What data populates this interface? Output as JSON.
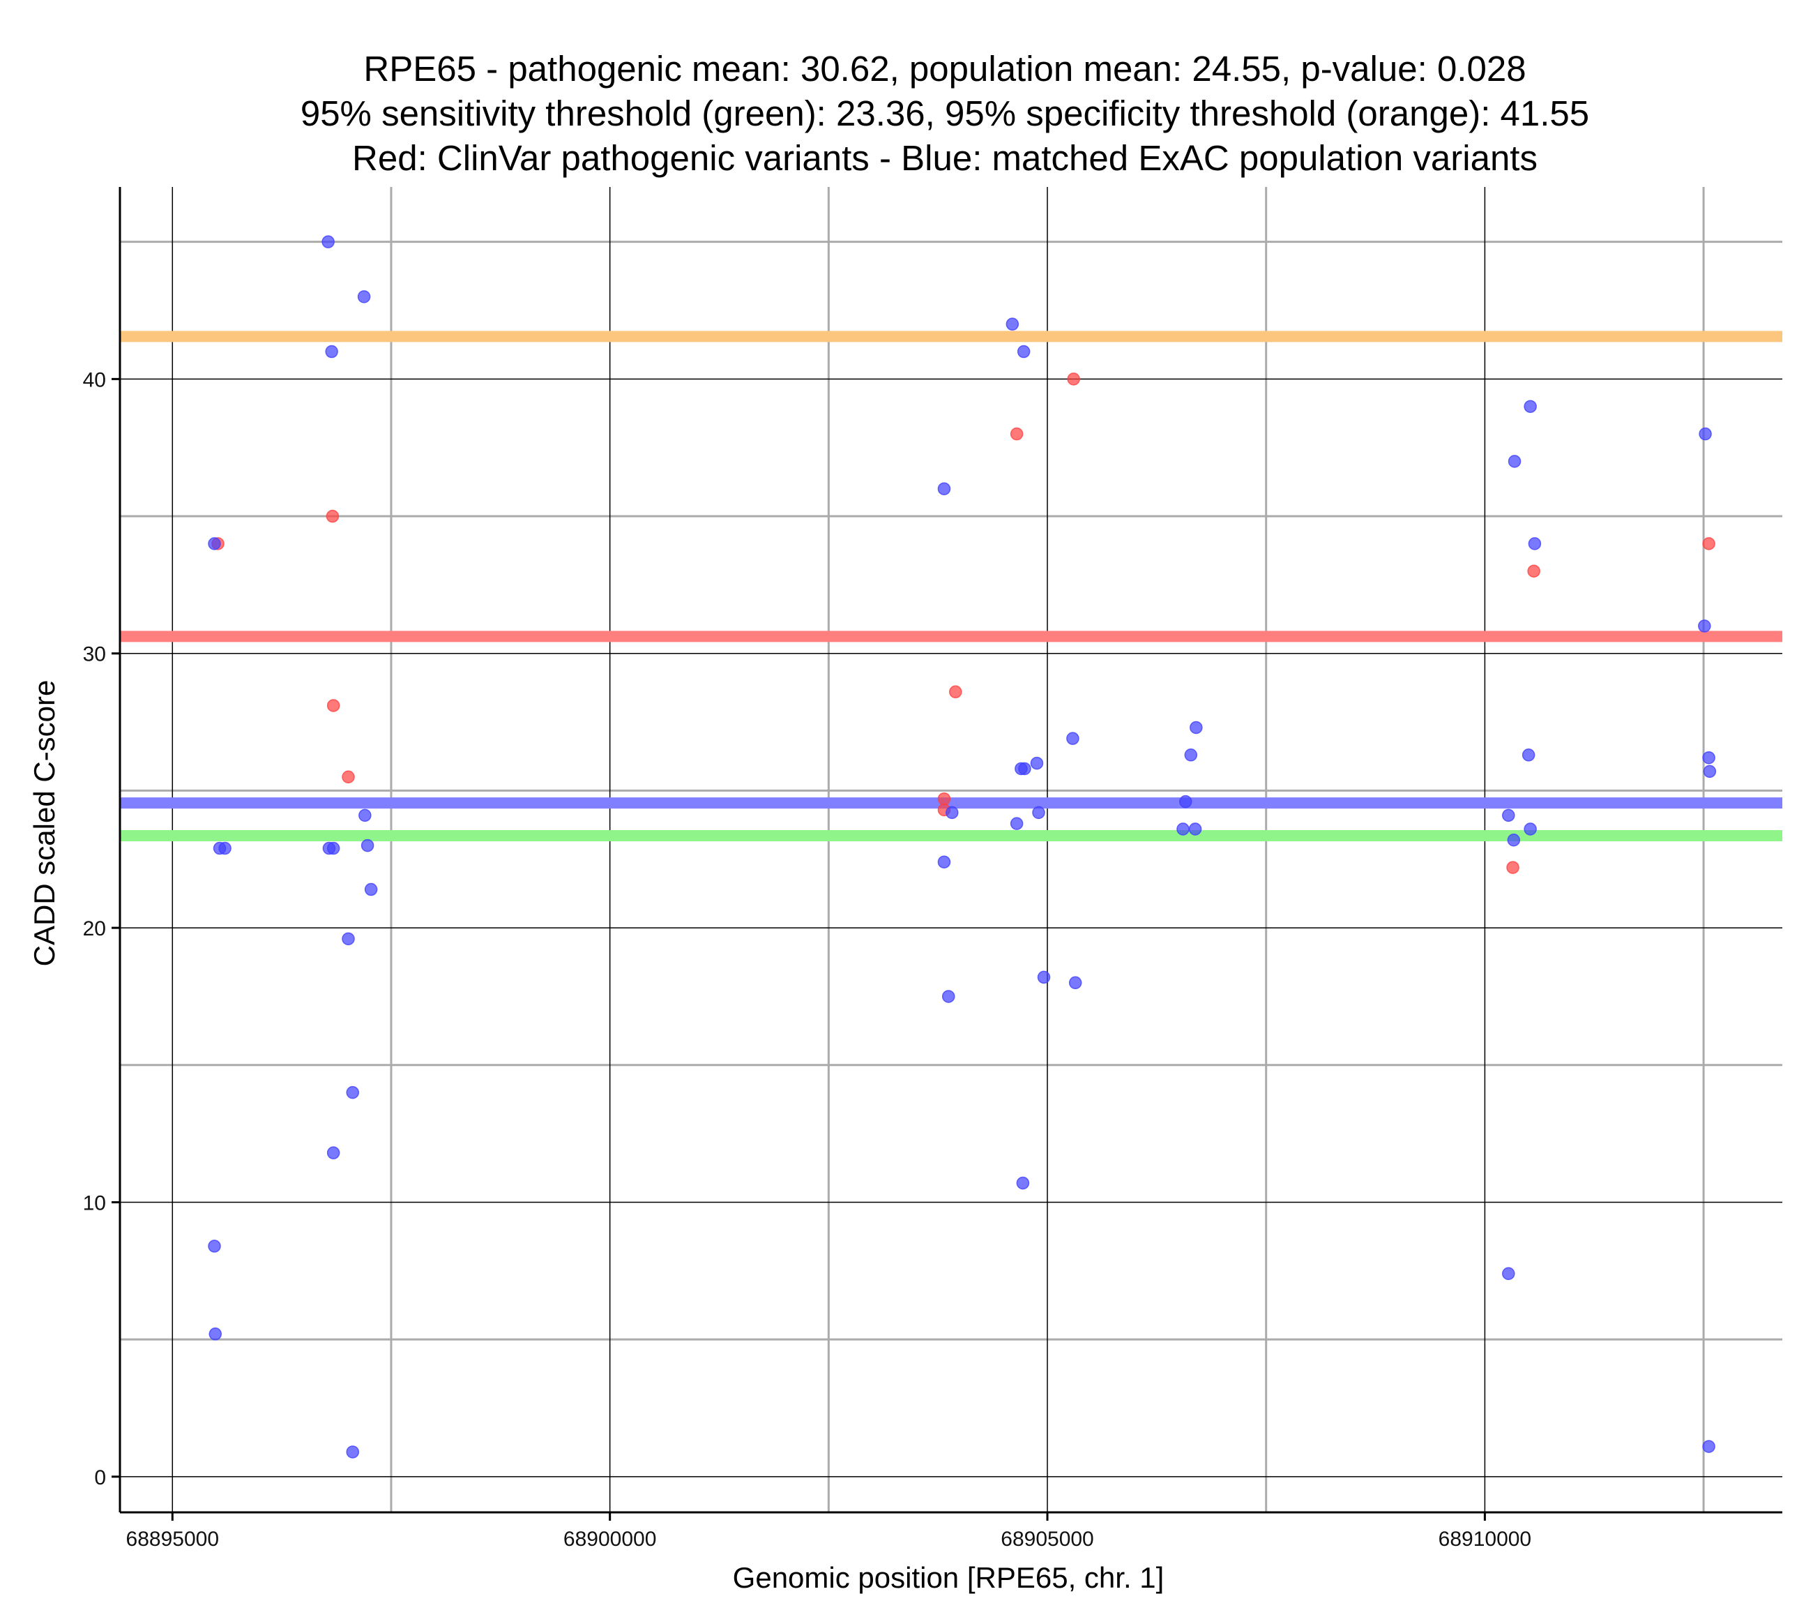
{
  "chart_data": {
    "type": "scatter",
    "title": [
      "RPE65 - pathogenic mean: 30.62, population mean: 24.55, p-value: 0.028",
      "95% sensitivity threshold (green): 23.36, 95% specificity threshold (orange): 41.55",
      "Red: ClinVar pathogenic variants - Blue: matched ExAC population variants"
    ],
    "xlabel": "Genomic position [RPE65, chr. 1]",
    "ylabel": "CADD scaled C-score",
    "xlim": [
      68894400,
      68913400
    ],
    "ylim": [
      -1.3,
      47
    ],
    "x_ticks": [
      68895000,
      68900000,
      68905000,
      68910000
    ],
    "x_tick_labels": [
      "68895000",
      "68900000",
      "68905000",
      "68910000"
    ],
    "x_minor_grid": [
      68897500,
      68902500,
      68907500,
      68912500
    ],
    "y_ticks": [
      0,
      10,
      20,
      30,
      40
    ],
    "y_tick_labels": [
      "0",
      "10",
      "20",
      "30",
      "40"
    ],
    "y_minor_grid": [
      5,
      15,
      25,
      35,
      45
    ],
    "reference_lines": [
      {
        "name": "specificity-threshold",
        "label": "95% specificity threshold (orange)",
        "y": 41.55,
        "color": "#fcc67e"
      },
      {
        "name": "pathogenic-mean",
        "label": "pathogenic mean",
        "y": 30.62,
        "color": "#ff7f7f"
      },
      {
        "name": "population-mean",
        "label": "population mean",
        "y": 24.55,
        "color": "#7f7fff"
      },
      {
        "name": "sensitivity-threshold",
        "label": "95% sensitivity threshold (green)",
        "y": 23.36,
        "color": "#8ff58a"
      }
    ],
    "series": [
      {
        "name": "ClinVar pathogenic variants",
        "color": "#ff4040",
        "points": [
          {
            "x": 68895520,
            "y": 34.0
          },
          {
            "x": 68896830,
            "y": 35.0
          },
          {
            "x": 68896840,
            "y": 28.1
          },
          {
            "x": 68897010,
            "y": 25.5
          },
          {
            "x": 68904650,
            "y": 38.0
          },
          {
            "x": 68905300,
            "y": 40.0
          },
          {
            "x": 68903950,
            "y": 28.6
          },
          {
            "x": 68903820,
            "y": 24.7
          },
          {
            "x": 68903820,
            "y": 24.3
          },
          {
            "x": 68910320,
            "y": 22.2
          },
          {
            "x": 68910560,
            "y": 33.0
          },
          {
            "x": 68912560,
            "y": 34.0
          }
        ]
      },
      {
        "name": "matched ExAC population variants",
        "color": "#4040ff",
        "points": [
          {
            "x": 68896780,
            "y": 45.0
          },
          {
            "x": 68897190,
            "y": 43.0
          },
          {
            "x": 68896820,
            "y": 41.0
          },
          {
            "x": 68895480,
            "y": 34.0
          },
          {
            "x": 68895540,
            "y": 22.9
          },
          {
            "x": 68895600,
            "y": 22.9
          },
          {
            "x": 68896790,
            "y": 22.9
          },
          {
            "x": 68896840,
            "y": 22.9
          },
          {
            "x": 68897200,
            "y": 24.1
          },
          {
            "x": 68897230,
            "y": 23.0
          },
          {
            "x": 68897270,
            "y": 21.4
          },
          {
            "x": 68897010,
            "y": 19.6
          },
          {
            "x": 68897060,
            "y": 14.0
          },
          {
            "x": 68896840,
            "y": 11.8
          },
          {
            "x": 68895480,
            "y": 8.4
          },
          {
            "x": 68895490,
            "y": 5.2
          },
          {
            "x": 68897060,
            "y": 0.9
          },
          {
            "x": 68904600,
            "y": 42.0
          },
          {
            "x": 68904730,
            "y": 41.0
          },
          {
            "x": 68903820,
            "y": 36.0
          },
          {
            "x": 68903910,
            "y": 24.2
          },
          {
            "x": 68903820,
            "y": 22.4
          },
          {
            "x": 68903870,
            "y": 17.5
          },
          {
            "x": 68904650,
            "y": 23.8
          },
          {
            "x": 68904700,
            "y": 25.8
          },
          {
            "x": 68904740,
            "y": 25.8
          },
          {
            "x": 68904880,
            "y": 26.0
          },
          {
            "x": 68904900,
            "y": 24.2
          },
          {
            "x": 68904960,
            "y": 18.2
          },
          {
            "x": 68905290,
            "y": 26.9
          },
          {
            "x": 68905320,
            "y": 18.0
          },
          {
            "x": 68904720,
            "y": 10.7
          },
          {
            "x": 68906580,
            "y": 24.6
          },
          {
            "x": 68906550,
            "y": 23.6
          },
          {
            "x": 68906640,
            "y": 26.3
          },
          {
            "x": 68906690,
            "y": 23.6
          },
          {
            "x": 68906700,
            "y": 27.3
          },
          {
            "x": 68910520,
            "y": 39.0
          },
          {
            "x": 68910340,
            "y": 37.0
          },
          {
            "x": 68910570,
            "y": 34.0
          },
          {
            "x": 68910500,
            "y": 26.3
          },
          {
            "x": 68910270,
            "y": 24.1
          },
          {
            "x": 68910520,
            "y": 23.6
          },
          {
            "x": 68910330,
            "y": 23.2
          },
          {
            "x": 68910270,
            "y": 7.4
          },
          {
            "x": 68912520,
            "y": 38.0
          },
          {
            "x": 68912510,
            "y": 31.0
          },
          {
            "x": 68912560,
            "y": 26.2
          },
          {
            "x": 68912570,
            "y": 25.7
          },
          {
            "x": 68912560,
            "y": 1.1
          }
        ]
      }
    ]
  }
}
